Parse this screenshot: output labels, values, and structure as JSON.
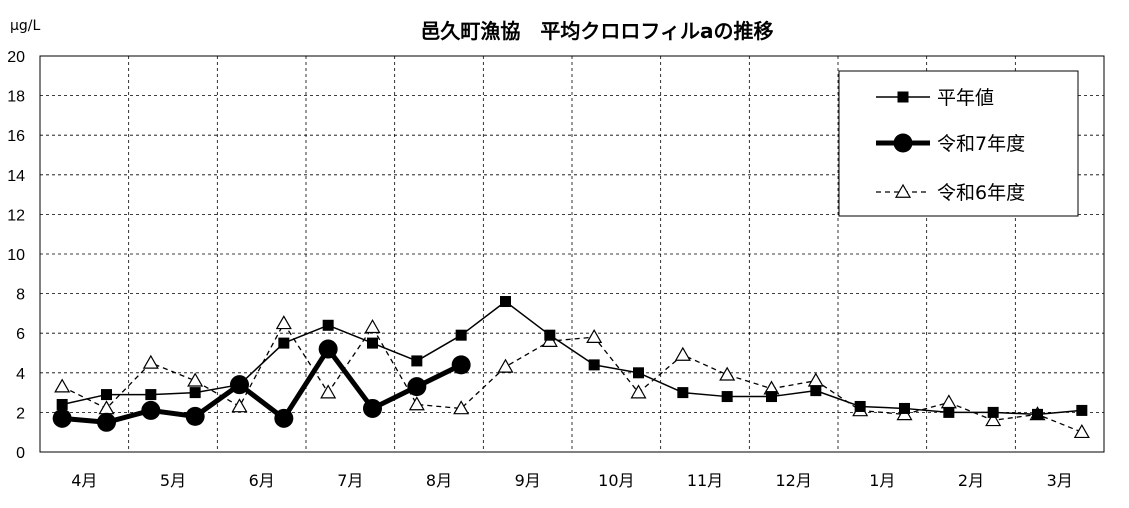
{
  "chart_data": {
    "type": "line",
    "title": "邑久町漁協　平均クロロフィルaの推移",
    "unit_label": "μg/L",
    "ylim": [
      0,
      20
    ],
    "ytick_labels": [
      "0",
      "2",
      "4",
      "6",
      "8",
      "10",
      "12",
      "14",
      "16",
      "18",
      "20"
    ],
    "grid": true,
    "legend_position": "top-right",
    "x": [
      "4月",
      "4月",
      "5月",
      "5月",
      "6月",
      "6月",
      "7月",
      "7月",
      "8月",
      "8月",
      "9月",
      "9月",
      "10月",
      "10月",
      "11月",
      "11月",
      "12月",
      "12月",
      "1月",
      "1月",
      "2月",
      "2月",
      "3月",
      "3月"
    ],
    "xtick_labels": [
      "4月",
      "5月",
      "6月",
      "7月",
      "8月",
      "9月",
      "10月",
      "11月",
      "12月",
      "1月",
      "2月",
      "3月"
    ],
    "series": [
      {
        "name": "平年値",
        "style": "thin-solid-square",
        "color": "#000000",
        "values": [
          2.4,
          2.9,
          2.9,
          3.0,
          3.4,
          5.5,
          6.4,
          5.5,
          4.6,
          5.9,
          7.6,
          5.9,
          4.4,
          4.0,
          3.0,
          2.8,
          2.8,
          3.1,
          2.3,
          2.2,
          2.0,
          2.0,
          1.9,
          2.1
        ]
      },
      {
        "name": "令和7年度",
        "style": "thick-solid-circle",
        "color": "#000000",
        "values": [
          1.7,
          1.5,
          2.1,
          1.8,
          3.4,
          1.7,
          5.2,
          2.2,
          3.3,
          4.4,
          null,
          null,
          null,
          null,
          null,
          null,
          null,
          null,
          null,
          null,
          null,
          null,
          null,
          null
        ]
      },
      {
        "name": "令和6年度",
        "style": "dashed-open-triangle",
        "color": "#000000",
        "values": [
          3.3,
          2.2,
          4.5,
          3.6,
          2.3,
          6.5,
          3.0,
          6.3,
          2.4,
          2.2,
          4.3,
          5.6,
          5.8,
          3.0,
          4.9,
          3.9,
          3.2,
          3.6,
          2.1,
          1.9,
          2.5,
          1.6,
          1.9,
          1.0
        ]
      }
    ]
  }
}
